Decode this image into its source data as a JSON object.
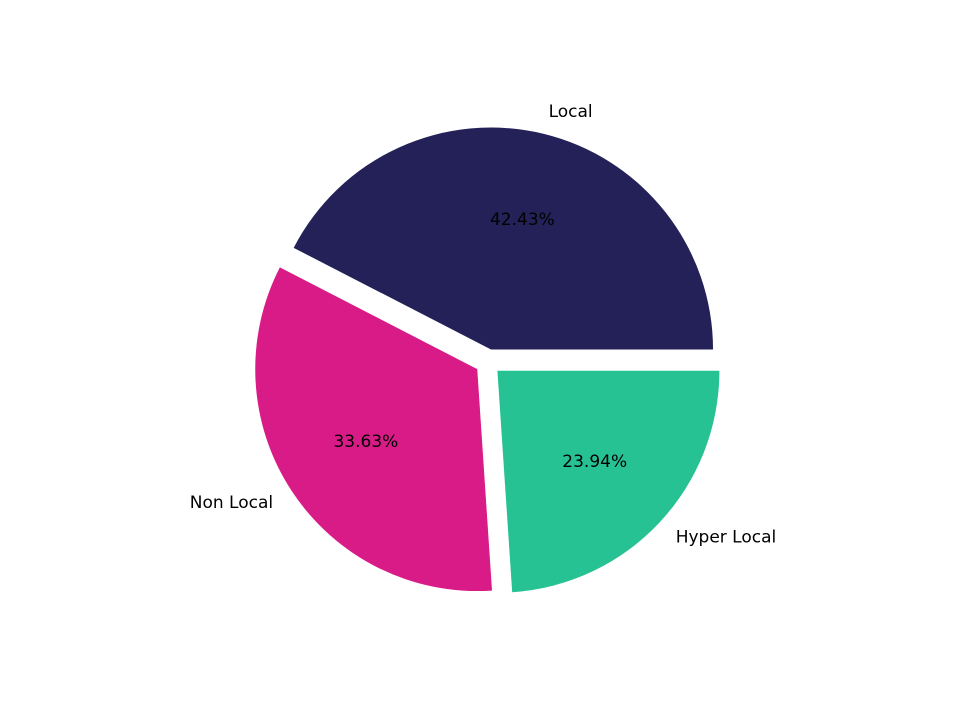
{
  "chart_data": {
    "type": "pie",
    "labels": [
      "Local",
      "Non Local",
      "Hyper Local"
    ],
    "values": [
      42.43,
      33.63,
      23.94
    ],
    "value_labels": [
      "42.43%",
      "33.63%",
      "23.94%"
    ],
    "colors": [
      "#232157",
      "#d81b86",
      "#27c294"
    ],
    "startangle": 0,
    "counterclock": true,
    "explode": [
      0.058,
      0.058,
      0.058
    ],
    "labeldistance": 1.1,
    "pctdistance": 0.6,
    "label_color": "#000000",
    "background": "#ffffff",
    "legend": false,
    "title": ""
  }
}
